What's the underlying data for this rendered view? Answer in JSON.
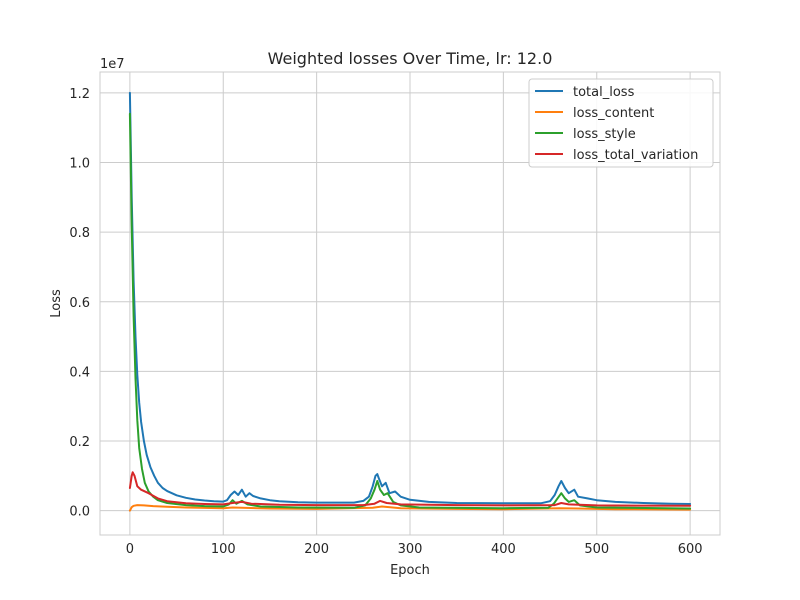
{
  "chart_data": {
    "type": "line",
    "title": "Weighted losses Over Time, lr: 12.0",
    "xlabel": "Epoch",
    "ylabel": "Loss",
    "y_multiplier_label": "1e7",
    "xlim": [
      -32,
      632
    ],
    "ylim": [
      -0.07,
      1.26
    ],
    "x_ticks": [
      0,
      100,
      200,
      300,
      400,
      500,
      600
    ],
    "y_ticks": [
      0.0,
      0.2,
      0.4,
      0.6,
      0.8,
      1.0,
      1.2
    ],
    "y_tick_labels": [
      "0.0",
      "0.2",
      "0.4",
      "0.6",
      "0.8",
      "1.0",
      "1.2"
    ],
    "grid": true,
    "legend_position": "top-right",
    "series": [
      {
        "name": "total_loss",
        "color": "#1f77b4",
        "points": [
          [
            0,
            1.2
          ],
          [
            2,
            0.9
          ],
          [
            4,
            0.66
          ],
          [
            6,
            0.5
          ],
          [
            8,
            0.39
          ],
          [
            10,
            0.31
          ],
          [
            12,
            0.255
          ],
          [
            15,
            0.2
          ],
          [
            18,
            0.16
          ],
          [
            22,
            0.125
          ],
          [
            26,
            0.1
          ],
          [
            30,
            0.08
          ],
          [
            35,
            0.065
          ],
          [
            40,
            0.056
          ],
          [
            50,
            0.044
          ],
          [
            60,
            0.037
          ],
          [
            70,
            0.032
          ],
          [
            80,
            0.029
          ],
          [
            90,
            0.027
          ],
          [
            100,
            0.026
          ],
          [
            104,
            0.03
          ],
          [
            108,
            0.045
          ],
          [
            112,
            0.055
          ],
          [
            116,
            0.045
          ],
          [
            120,
            0.06
          ],
          [
            124,
            0.04
          ],
          [
            128,
            0.05
          ],
          [
            132,
            0.042
          ],
          [
            140,
            0.035
          ],
          [
            150,
            0.03
          ],
          [
            160,
            0.027
          ],
          [
            180,
            0.024
          ],
          [
            200,
            0.023
          ],
          [
            220,
            0.023
          ],
          [
            240,
            0.023
          ],
          [
            250,
            0.028
          ],
          [
            256,
            0.04
          ],
          [
            260,
            0.07
          ],
          [
            263,
            0.1
          ],
          [
            265,
            0.105
          ],
          [
            267,
            0.09
          ],
          [
            270,
            0.07
          ],
          [
            274,
            0.08
          ],
          [
            278,
            0.05
          ],
          [
            284,
            0.055
          ],
          [
            290,
            0.04
          ],
          [
            300,
            0.031
          ],
          [
            320,
            0.025
          ],
          [
            350,
            0.022
          ],
          [
            400,
            0.021
          ],
          [
            440,
            0.021
          ],
          [
            450,
            0.027
          ],
          [
            455,
            0.045
          ],
          [
            459,
            0.07
          ],
          [
            462,
            0.085
          ],
          [
            466,
            0.065
          ],
          [
            470,
            0.05
          ],
          [
            476,
            0.06
          ],
          [
            480,
            0.04
          ],
          [
            490,
            0.035
          ],
          [
            500,
            0.03
          ],
          [
            520,
            0.025
          ],
          [
            550,
            0.022
          ],
          [
            580,
            0.02
          ],
          [
            600,
            0.019
          ]
        ]
      },
      {
        "name": "loss_content",
        "color": "#ff7f0e",
        "points": [
          [
            0,
            0.0
          ],
          [
            2,
            0.01
          ],
          [
            4,
            0.014
          ],
          [
            8,
            0.016
          ],
          [
            15,
            0.015
          ],
          [
            25,
            0.013
          ],
          [
            40,
            0.011
          ],
          [
            60,
            0.009
          ],
          [
            100,
            0.007
          ],
          [
            110,
            0.009
          ],
          [
            120,
            0.008
          ],
          [
            150,
            0.006
          ],
          [
            200,
            0.005
          ],
          [
            260,
            0.008
          ],
          [
            270,
            0.012
          ],
          [
            290,
            0.007
          ],
          [
            350,
            0.005
          ],
          [
            400,
            0.004
          ],
          [
            460,
            0.007
          ],
          [
            480,
            0.006
          ],
          [
            520,
            0.004
          ],
          [
            600,
            0.003
          ]
        ]
      },
      {
        "name": "loss_style",
        "color": "#2ca02c",
        "points": [
          [
            0,
            1.14
          ],
          [
            2,
            0.82
          ],
          [
            4,
            0.56
          ],
          [
            6,
            0.38
          ],
          [
            8,
            0.26
          ],
          [
            10,
            0.18
          ],
          [
            13,
            0.12
          ],
          [
            16,
            0.08
          ],
          [
            20,
            0.055
          ],
          [
            25,
            0.04
          ],
          [
            30,
            0.03
          ],
          [
            40,
            0.022
          ],
          [
            60,
            0.016
          ],
          [
            80,
            0.013
          ],
          [
            100,
            0.012
          ],
          [
            106,
            0.018
          ],
          [
            110,
            0.03
          ],
          [
            114,
            0.02
          ],
          [
            120,
            0.028
          ],
          [
            126,
            0.018
          ],
          [
            140,
            0.012
          ],
          [
            180,
            0.009
          ],
          [
            240,
            0.008
          ],
          [
            252,
            0.015
          ],
          [
            258,
            0.035
          ],
          [
            262,
            0.06
          ],
          [
            265,
            0.085
          ],
          [
            268,
            0.06
          ],
          [
            272,
            0.045
          ],
          [
            276,
            0.05
          ],
          [
            282,
            0.025
          ],
          [
            290,
            0.015
          ],
          [
            310,
            0.009
          ],
          [
            400,
            0.007
          ],
          [
            448,
            0.008
          ],
          [
            454,
            0.02
          ],
          [
            458,
            0.035
          ],
          [
            462,
            0.05
          ],
          [
            466,
            0.035
          ],
          [
            470,
            0.025
          ],
          [
            476,
            0.03
          ],
          [
            482,
            0.015
          ],
          [
            500,
            0.009
          ],
          [
            600,
            0.006
          ]
        ]
      },
      {
        "name": "loss_total_variation",
        "color": "#d62728",
        "points": [
          [
            0,
            0.065
          ],
          [
            2,
            0.1
          ],
          [
            3,
            0.11
          ],
          [
            5,
            0.1
          ],
          [
            8,
            0.07
          ],
          [
            12,
            0.06
          ],
          [
            20,
            0.05
          ],
          [
            30,
            0.035
          ],
          [
            40,
            0.027
          ],
          [
            60,
            0.021
          ],
          [
            80,
            0.019
          ],
          [
            100,
            0.018
          ],
          [
            110,
            0.022
          ],
          [
            120,
            0.025
          ],
          [
            130,
            0.02
          ],
          [
            160,
            0.017
          ],
          [
            200,
            0.016
          ],
          [
            250,
            0.016
          ],
          [
            262,
            0.02
          ],
          [
            268,
            0.028
          ],
          [
            275,
            0.022
          ],
          [
            290,
            0.018
          ],
          [
            350,
            0.016
          ],
          [
            400,
            0.015
          ],
          [
            455,
            0.016
          ],
          [
            462,
            0.022
          ],
          [
            470,
            0.018
          ],
          [
            500,
            0.015
          ],
          [
            600,
            0.014
          ]
        ]
      }
    ]
  }
}
